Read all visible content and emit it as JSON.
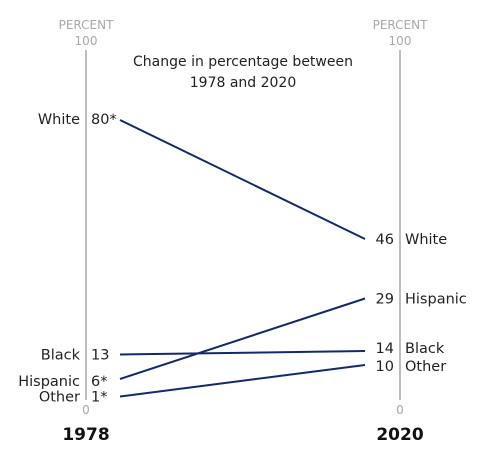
{
  "chart_data": {
    "type": "line",
    "title_line1": "Change in percentage between",
    "title_line2": "1978 and 2020",
    "axis_unit": "PERCENT",
    "ylim": [
      0,
      100
    ],
    "axis_max_label": "100",
    "axis_min_label": "0",
    "x": [
      "1978",
      "2020"
    ],
    "series": [
      {
        "name": "White",
        "values": [
          80,
          46
        ],
        "start_label": "80*",
        "end_label": "46"
      },
      {
        "name": "Black",
        "values": [
          13,
          14
        ],
        "start_label": "13",
        "end_label": "14"
      },
      {
        "name": "Hispanic",
        "values": [
          6,
          29
        ],
        "start_label": "6*",
        "end_label": "29"
      },
      {
        "name": "Other",
        "values": [
          1,
          10
        ],
        "start_label": "1*",
        "end_label": "10"
      }
    ],
    "line_color": "#13296b",
    "axis_color": "#bdbdbd",
    "grid": false
  }
}
